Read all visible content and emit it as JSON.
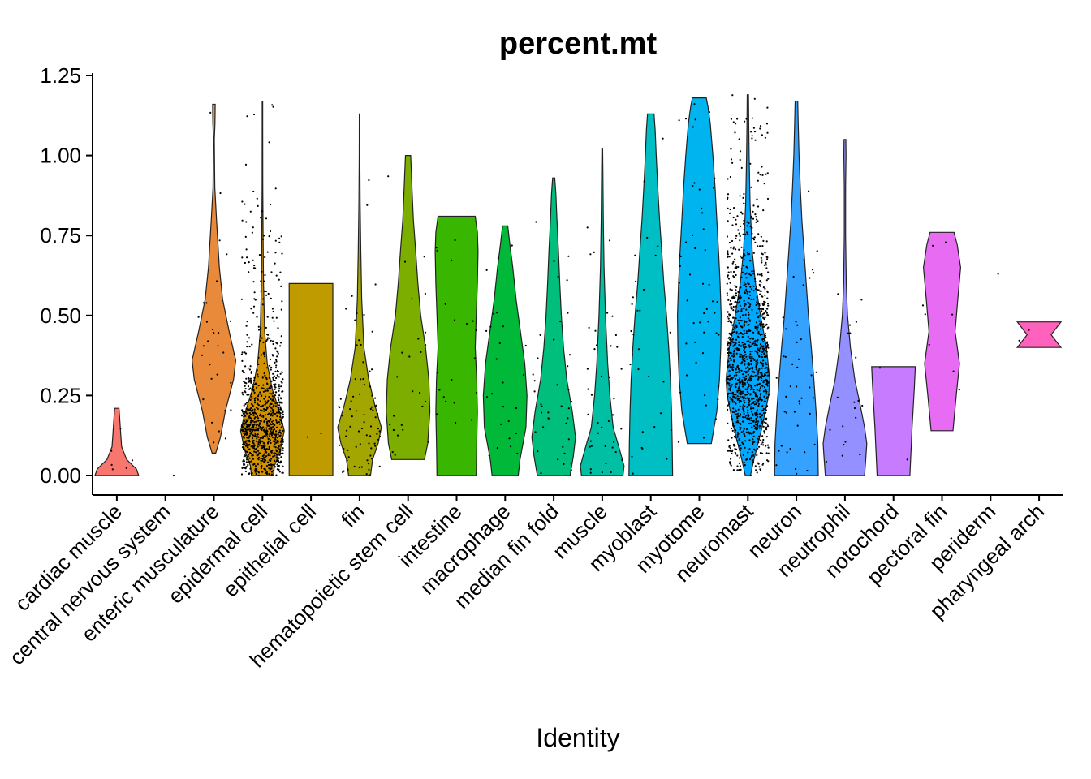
{
  "chart_data": {
    "type": "violin",
    "title": "percent.mt",
    "xlabel": "Identity",
    "ylabel": "",
    "ylim": [
      -0.06,
      1.25
    ],
    "yticks": [
      0.0,
      0.25,
      0.5,
      0.75,
      1.0,
      1.25
    ],
    "ytick_labels": [
      "0.00",
      "0.25",
      "0.50",
      "0.75",
      "1.00",
      "1.25"
    ],
    "legend": "none",
    "grid": false,
    "categories": [
      "cardiac muscle",
      "central nervous system",
      "enteric musculature",
      "epidermal cell",
      "epithelial cell",
      "fin",
      "hematopoietic stem cell",
      "intestine",
      "macrophage",
      "median fin fold",
      "muscle",
      "myoblast",
      "myotome",
      "neuromast",
      "neuron",
      "neutrophil",
      "notochord",
      "pectoral fin",
      "periderm",
      "pharyngeal arch"
    ],
    "series": [
      {
        "category": "cardiac muscle",
        "color": "#F8766D",
        "min": 0.0,
        "max": 0.21,
        "n_points": 6,
        "profile": [
          [
            0.0,
            1.0
          ],
          [
            0.02,
            0.9
          ],
          [
            0.05,
            0.45
          ],
          [
            0.09,
            0.22
          ],
          [
            0.13,
            0.18
          ],
          [
            0.17,
            0.14
          ],
          [
            0.21,
            0.1
          ]
        ]
      },
      {
        "category": "central nervous system",
        "color": "#E58700",
        "min": 0.0,
        "max": 0.0,
        "n_points": 1,
        "profile": []
      },
      {
        "category": "enteric musculature",
        "color": "#E88A3A",
        "min": 0.07,
        "max": 1.16,
        "n_points": 30,
        "profile": [
          [
            0.07,
            0.08
          ],
          [
            0.12,
            0.3
          ],
          [
            0.2,
            0.52
          ],
          [
            0.3,
            0.9
          ],
          [
            0.36,
            1.0
          ],
          [
            0.45,
            0.7
          ],
          [
            0.55,
            0.4
          ],
          [
            0.65,
            0.25
          ],
          [
            0.8,
            0.12
          ],
          [
            0.9,
            0.04
          ],
          [
            1.05,
            0.02
          ],
          [
            1.1,
            0.05
          ],
          [
            1.16,
            0.06
          ]
        ]
      },
      {
        "category": "epidermal cell",
        "color": "#D39200",
        "min": 0.0,
        "max": 1.17,
        "n_points": 900,
        "profile": [
          [
            0.0,
            0.5
          ],
          [
            0.03,
            0.55
          ],
          [
            0.08,
            0.82
          ],
          [
            0.14,
            1.0
          ],
          [
            0.2,
            0.78
          ],
          [
            0.27,
            0.45
          ],
          [
            0.35,
            0.22
          ],
          [
            0.45,
            0.1
          ],
          [
            0.6,
            0.05
          ],
          [
            0.75,
            0.03
          ],
          [
            0.9,
            0.015
          ],
          [
            1.1,
            0.01
          ],
          [
            1.17,
            0.01
          ]
        ]
      },
      {
        "category": "epithelial cell",
        "color": "#C09B00",
        "min": 0.0,
        "max": 0.6,
        "n_points": 2,
        "profile": [
          [
            0.0,
            1.0
          ],
          [
            0.6,
            1.0
          ]
        ]
      },
      {
        "category": "fin",
        "color": "#A3A500",
        "min": 0.0,
        "max": 1.13,
        "n_points": 80,
        "profile": [
          [
            0.0,
            0.5
          ],
          [
            0.05,
            0.6
          ],
          [
            0.1,
            0.85
          ],
          [
            0.15,
            1.0
          ],
          [
            0.22,
            0.7
          ],
          [
            0.3,
            0.42
          ],
          [
            0.4,
            0.2
          ],
          [
            0.55,
            0.1
          ],
          [
            0.7,
            0.06
          ],
          [
            0.85,
            0.03
          ],
          [
            1.0,
            0.015
          ],
          [
            1.13,
            0.01
          ]
        ]
      },
      {
        "category": "hematopoietic stem cell",
        "color": "#7CAE00",
        "min": 0.05,
        "max": 1.0,
        "n_points": 25,
        "profile": [
          [
            0.05,
            0.75
          ],
          [
            0.1,
            0.9
          ],
          [
            0.2,
            1.0
          ],
          [
            0.3,
            0.95
          ],
          [
            0.4,
            0.8
          ],
          [
            0.5,
            0.58
          ],
          [
            0.6,
            0.45
          ],
          [
            0.7,
            0.35
          ],
          [
            0.8,
            0.24
          ],
          [
            0.9,
            0.18
          ],
          [
            1.0,
            0.12
          ]
        ]
      },
      {
        "category": "intestine",
        "color": "#39B600",
        "min": 0.0,
        "max": 0.81,
        "n_points": 20,
        "profile": [
          [
            0.0,
            0.9
          ],
          [
            0.1,
            0.92
          ],
          [
            0.2,
            0.95
          ],
          [
            0.3,
            0.92
          ],
          [
            0.4,
            0.85
          ],
          [
            0.5,
            0.9
          ],
          [
            0.6,
            0.95
          ],
          [
            0.7,
            0.98
          ],
          [
            0.76,
            0.95
          ],
          [
            0.81,
            0.85
          ]
        ]
      },
      {
        "category": "macrophage",
        "color": "#00B938",
        "min": 0.0,
        "max": 0.78,
        "n_points": 25,
        "profile": [
          [
            0.0,
            0.6
          ],
          [
            0.05,
            0.68
          ],
          [
            0.15,
            0.95
          ],
          [
            0.25,
            1.0
          ],
          [
            0.35,
            0.9
          ],
          [
            0.45,
            0.7
          ],
          [
            0.55,
            0.5
          ],
          [
            0.65,
            0.35
          ],
          [
            0.72,
            0.22
          ],
          [
            0.78,
            0.12
          ]
        ]
      },
      {
        "category": "median fin fold",
        "color": "#00BF7D",
        "min": 0.0,
        "max": 0.93,
        "n_points": 40,
        "profile": [
          [
            0.0,
            0.75
          ],
          [
            0.06,
            0.9
          ],
          [
            0.12,
            1.0
          ],
          [
            0.2,
            0.85
          ],
          [
            0.3,
            0.6
          ],
          [
            0.4,
            0.45
          ],
          [
            0.5,
            0.35
          ],
          [
            0.6,
            0.28
          ],
          [
            0.7,
            0.22
          ],
          [
            0.8,
            0.15
          ],
          [
            0.88,
            0.1
          ],
          [
            0.93,
            0.05
          ]
        ]
      },
      {
        "category": "muscle",
        "color": "#00BFA2",
        "min": 0.0,
        "max": 1.02,
        "n_points": 40,
        "profile": [
          [
            0.0,
            0.95
          ],
          [
            0.03,
            1.0
          ],
          [
            0.08,
            0.8
          ],
          [
            0.15,
            0.5
          ],
          [
            0.25,
            0.35
          ],
          [
            0.35,
            0.25
          ],
          [
            0.5,
            0.15
          ],
          [
            0.65,
            0.08
          ],
          [
            0.8,
            0.05
          ],
          [
            0.95,
            0.03
          ],
          [
            1.02,
            0.02
          ]
        ]
      },
      {
        "category": "myoblast",
        "color": "#00BFC4",
        "min": 0.0,
        "max": 1.13,
        "n_points": 30,
        "profile": [
          [
            0.0,
            1.0
          ],
          [
            0.1,
            0.98
          ],
          [
            0.2,
            0.95
          ],
          [
            0.3,
            0.9
          ],
          [
            0.4,
            0.82
          ],
          [
            0.5,
            0.72
          ],
          [
            0.6,
            0.6
          ],
          [
            0.7,
            0.5
          ],
          [
            0.8,
            0.4
          ],
          [
            0.9,
            0.32
          ],
          [
            1.0,
            0.25
          ],
          [
            1.08,
            0.2
          ],
          [
            1.13,
            0.15
          ]
        ]
      },
      {
        "category": "myotome",
        "color": "#00B4EF",
        "min": 0.1,
        "max": 1.18,
        "n_points": 50,
        "profile": [
          [
            0.1,
            0.55
          ],
          [
            0.2,
            0.8
          ],
          [
            0.3,
            0.92
          ],
          [
            0.4,
            0.98
          ],
          [
            0.5,
            1.0
          ],
          [
            0.6,
            0.95
          ],
          [
            0.7,
            0.88
          ],
          [
            0.8,
            0.8
          ],
          [
            0.9,
            0.72
          ],
          [
            1.0,
            0.62
          ],
          [
            1.1,
            0.5
          ],
          [
            1.15,
            0.4
          ],
          [
            1.18,
            0.32
          ]
        ]
      },
      {
        "category": "neuromast",
        "color": "#00A9FF",
        "min": 0.0,
        "max": 1.19,
        "n_points": 1200,
        "profile": [
          [
            0.0,
            0.12
          ],
          [
            0.05,
            0.28
          ],
          [
            0.15,
            0.65
          ],
          [
            0.25,
            0.95
          ],
          [
            0.3,
            1.0
          ],
          [
            0.4,
            0.85
          ],
          [
            0.5,
            0.58
          ],
          [
            0.6,
            0.35
          ],
          [
            0.7,
            0.2
          ],
          [
            0.85,
            0.1
          ],
          [
            1.0,
            0.06
          ],
          [
            1.1,
            0.04
          ],
          [
            1.19,
            0.03
          ]
        ]
      },
      {
        "category": "neuron",
        "color": "#35A2FF",
        "min": 0.0,
        "max": 1.17,
        "n_points": 45,
        "profile": [
          [
            0.0,
            1.0
          ],
          [
            0.1,
            0.98
          ],
          [
            0.2,
            0.9
          ],
          [
            0.3,
            0.8
          ],
          [
            0.4,
            0.68
          ],
          [
            0.5,
            0.55
          ],
          [
            0.6,
            0.45
          ],
          [
            0.7,
            0.35
          ],
          [
            0.8,
            0.25
          ],
          [
            0.9,
            0.18
          ],
          [
            1.0,
            0.12
          ],
          [
            1.1,
            0.08
          ],
          [
            1.17,
            0.06
          ]
        ]
      },
      {
        "category": "neutrophil",
        "color": "#9590FF",
        "min": 0.0,
        "max": 1.05,
        "n_points": 20,
        "profile": [
          [
            0.0,
            0.9
          ],
          [
            0.05,
            0.95
          ],
          [
            0.1,
            1.0
          ],
          [
            0.15,
            0.9
          ],
          [
            0.22,
            0.7
          ],
          [
            0.3,
            0.45
          ],
          [
            0.4,
            0.25
          ],
          [
            0.5,
            0.12
          ],
          [
            0.6,
            0.06
          ],
          [
            0.75,
            0.03
          ],
          [
            0.9,
            0.03
          ],
          [
            1.0,
            0.05
          ],
          [
            1.05,
            0.04
          ]
        ]
      },
      {
        "category": "notochord",
        "color": "#C77CFF",
        "min": 0.0,
        "max": 0.34,
        "n_points": 2,
        "profile": [
          [
            0.0,
            0.75
          ],
          [
            0.15,
            0.85
          ],
          [
            0.27,
            0.95
          ],
          [
            0.34,
            1.0
          ]
        ]
      },
      {
        "category": "pectoral fin",
        "color": "#E76BF3",
        "min": 0.14,
        "max": 0.76,
        "n_points": 8,
        "profile": [
          [
            0.14,
            0.5
          ],
          [
            0.25,
            0.65
          ],
          [
            0.35,
            0.8
          ],
          [
            0.45,
            0.6
          ],
          [
            0.55,
            0.72
          ],
          [
            0.65,
            0.85
          ],
          [
            0.72,
            0.7
          ],
          [
            0.76,
            0.55
          ]
        ]
      },
      {
        "category": "periderm",
        "color": "#FA62DB",
        "min": 0.63,
        "max": 0.63,
        "n_points": 1,
        "profile": []
      },
      {
        "category": "pharyngeal arch",
        "color": "#FF62BC",
        "min": 0.4,
        "max": 0.48,
        "n_points": 2,
        "profile": [
          [
            0.4,
            1.0
          ],
          [
            0.44,
            0.55
          ],
          [
            0.48,
            1.0
          ]
        ]
      }
    ]
  }
}
